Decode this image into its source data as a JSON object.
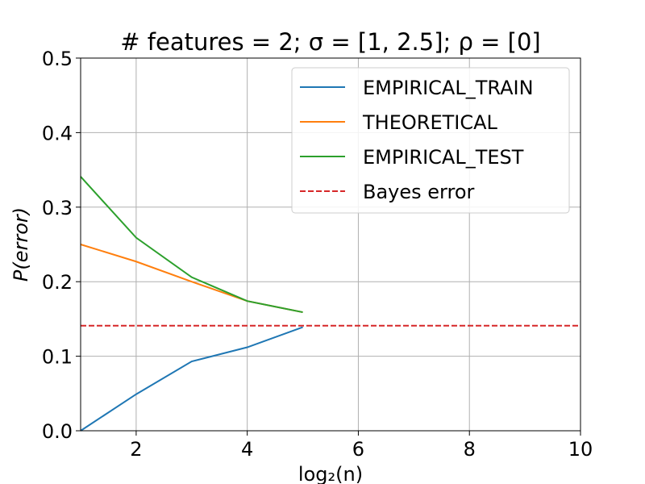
{
  "chart_data": {
    "type": "line",
    "title": "# features = 2;  σ = [1, 2.5];  ρ = [0]",
    "xlabel": "log₂(n)",
    "ylabel": "P(error)",
    "xlim": [
      1,
      10
    ],
    "ylim": [
      0,
      0.5
    ],
    "xticks": [
      "2",
      "4",
      "6",
      "8",
      "10"
    ],
    "yticks": [
      "0.0",
      "0.1",
      "0.2",
      "0.3",
      "0.4",
      "0.5"
    ],
    "grid": true,
    "legend_position": "top-right",
    "series": [
      {
        "name": "EMPIRICAL_TRAIN",
        "color": "#1f77b4",
        "style": "solid",
        "x": [
          1,
          2,
          3,
          4,
          5
        ],
        "y": [
          0.0,
          0.049,
          0.093,
          0.112,
          0.139
        ]
      },
      {
        "name": "THEORETICAL",
        "color": "#ff7f0e",
        "style": "solid",
        "x": [
          1,
          2,
          3,
          4,
          5
        ],
        "y": [
          0.25,
          0.227,
          0.2,
          0.174,
          0.159
        ]
      },
      {
        "name": "EMPIRICAL_TEST",
        "color": "#2ca02c",
        "style": "solid",
        "x": [
          1,
          2,
          3,
          4,
          5
        ],
        "y": [
          0.341,
          0.259,
          0.206,
          0.174,
          0.159
        ]
      },
      {
        "name": "Bayes error",
        "color": "#d62728",
        "style": "dashed",
        "x": [
          1,
          10
        ],
        "y": [
          0.141,
          0.141
        ]
      }
    ]
  }
}
